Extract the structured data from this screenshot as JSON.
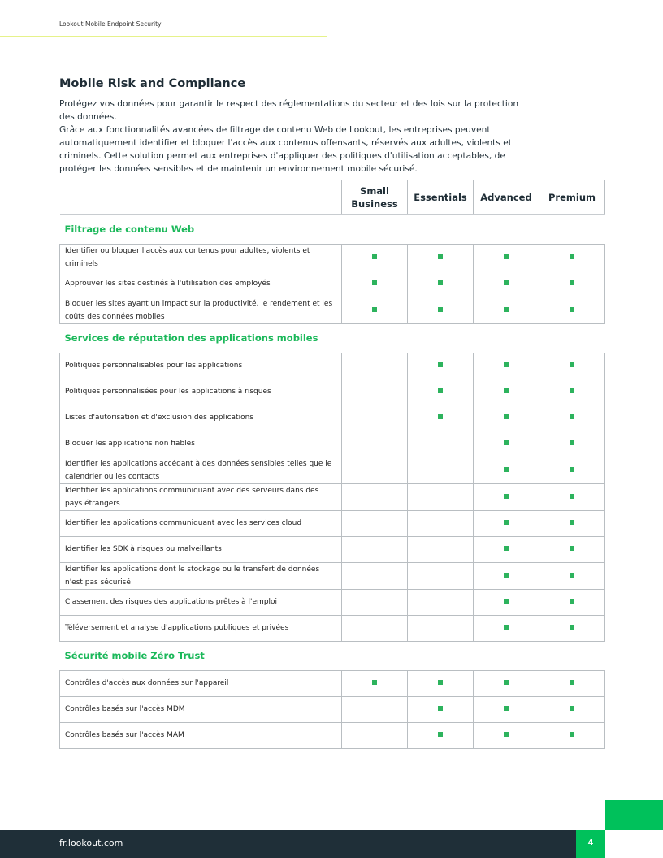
{
  "header": {
    "title": "Lookout Mobile Endpoint Security"
  },
  "section_title": "Mobile Risk and Compliance",
  "intro": [
    "Protégez vos données pour garantir le respect des réglementations du secteur et des lois sur la protection des données.",
    "Grâce aux fonctionnalités avancées de filtrage de contenu Web de Lookout, les entreprises peuvent automatiquement identifier et bloquer l'accès aux contenus offensants, réservés aux adultes, violents et criminels. Cette solution permet aux entreprises d'appliquer des politiques d'utilisation acceptables, de protéger les données sensibles et de maintenir un environnement mobile sécurisé."
  ],
  "columns": [
    "Small Business",
    "Essentials",
    "Advanced",
    "Premium"
  ],
  "accent": "#00c15b",
  "groups": [
    {
      "title": "Filtrage de contenu Web",
      "rows": [
        {
          "feature": "Identifier ou bloquer l'accès aux contenus pour adultes, violents et criminels",
          "marks": [
            1,
            1,
            1,
            1
          ]
        },
        {
          "feature": "Approuver les sites destinés à l'utilisation des employés",
          "marks": [
            1,
            1,
            1,
            1
          ]
        },
        {
          "feature": "Bloquer les sites ayant un impact sur la productivité, le rendement et les coûts des données mobiles",
          "marks": [
            1,
            1,
            1,
            1
          ]
        }
      ]
    },
    {
      "title": "Services de réputation des applications mobiles",
      "rows": [
        {
          "feature": "Politiques personnalisables pour les applications",
          "marks": [
            0,
            1,
            1,
            1
          ]
        },
        {
          "feature": "Politiques personnalisées pour les applications à risques",
          "marks": [
            0,
            1,
            1,
            1
          ]
        },
        {
          "feature": "Listes d'autorisation et d'exclusion des applications",
          "marks": [
            0,
            1,
            1,
            1
          ]
        },
        {
          "feature": "Bloquer les applications non fiables",
          "marks": [
            0,
            0,
            1,
            1
          ]
        },
        {
          "feature": "Identifier les applications accédant à des données sensibles telles que le calendrier ou les contacts",
          "marks": [
            0,
            0,
            1,
            1
          ]
        },
        {
          "feature": "Identifier les applications communiquant avec des serveurs dans des pays étrangers",
          "marks": [
            0,
            0,
            1,
            1
          ]
        },
        {
          "feature": "Identifier les applications communiquant avec les services cloud",
          "marks": [
            0,
            0,
            1,
            1
          ]
        },
        {
          "feature": "Identifier les SDK à risques ou malveillants",
          "marks": [
            0,
            0,
            1,
            1
          ]
        },
        {
          "feature": "Identifier les applications dont le stockage ou le transfert de données n'est pas sécurisé",
          "marks": [
            0,
            0,
            1,
            1
          ]
        },
        {
          "feature": "Classement des risques des applications prêtes à l'emploi",
          "marks": [
            0,
            0,
            1,
            1
          ]
        },
        {
          "feature": "Téléversement et analyse d'applications publiques et privées",
          "marks": [
            0,
            0,
            1,
            1
          ]
        }
      ]
    },
    {
      "title": "Sécurité mobile Zéro Trust",
      "rows": [
        {
          "feature": "Contrôles d'accès aux données sur l'appareil",
          "marks": [
            1,
            1,
            1,
            1
          ]
        },
        {
          "feature": "Contrôles basés sur l'accès MDM",
          "marks": [
            0,
            1,
            1,
            1
          ]
        },
        {
          "feature": "Contrôles basés sur l'accès MAM",
          "marks": [
            0,
            1,
            1,
            1
          ]
        }
      ]
    }
  ],
  "footer": {
    "url": "fr.lookout.com",
    "page": "4"
  }
}
